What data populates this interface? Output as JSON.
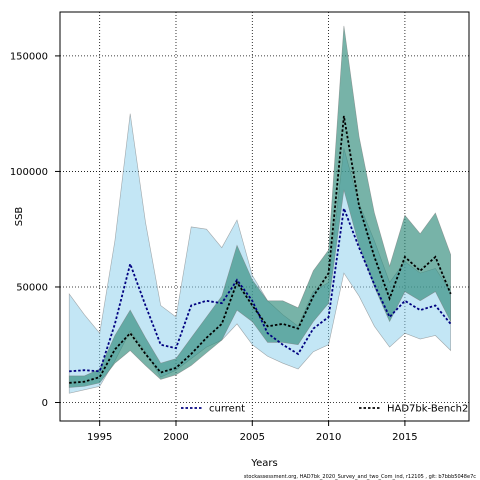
{
  "chart_data": {
    "type": "area",
    "xlabel": "Years",
    "ylabel": "SSB",
    "xlim": [
      1992.4,
      2019.2
    ],
    "ylim": [
      -8000,
      169000
    ],
    "x_ticks": [
      1995,
      2000,
      2005,
      2010,
      2015
    ],
    "y_ticks": [
      0,
      50000,
      100000,
      150000
    ],
    "y_tick_labels": [
      "0",
      "50000",
      "100000",
      "150000"
    ],
    "grid": true,
    "legend_position": "bottom",
    "footnote": "stockassessment.org, HAD7bk_2020_Survey_and_two_Com_ind, r12105 , git: b7bbb5048e7c",
    "series": [
      {
        "name": "current",
        "color": "#000080",
        "band_color": "#87ceeb",
        "x": [
          1993,
          1994,
          1995,
          1996,
          1997,
          1998,
          1999,
          2000,
          2001,
          2002,
          2003,
          2004,
          2005,
          2006,
          2007,
          2008,
          2009,
          2010,
          2011,
          2012,
          2013,
          2014,
          2015,
          2016,
          2017,
          2018
        ],
        "values": [
          13500,
          14000,
          13500,
          34000,
          60000,
          42000,
          25000,
          23500,
          42000,
          44000,
          43000,
          53000,
          44000,
          30000,
          25000,
          21000,
          32000,
          37000,
          84000,
          67000,
          51000,
          37000,
          44000,
          40000,
          42000,
          34000
        ],
        "lower": [
          4000,
          5500,
          7000,
          18000,
          31000,
          22000,
          11000,
          14000,
          19000,
          24000,
          27000,
          34000,
          25000,
          20000,
          17000,
          14500,
          22000,
          25000,
          56000,
          46000,
          33000,
          24000,
          30000,
          27500,
          29000,
          22500
        ],
        "upper": [
          47000,
          38000,
          30000,
          70000,
          125000,
          78000,
          42000,
          37000,
          76000,
          75000,
          67000,
          79000,
          55000,
          44000,
          38000,
          33000,
          48000,
          52000,
          110000,
          86000,
          70000,
          52000,
          61000,
          56000,
          58000,
          48000
        ]
      },
      {
        "name": "HAD7bk-Bench2",
        "color": "#000000",
        "band_color": "#2e8b7a",
        "x": [
          1993,
          1994,
          1995,
          1996,
          1997,
          1998,
          1999,
          2000,
          2001,
          2002,
          2003,
          2004,
          2005,
          2006,
          2007,
          2008,
          2009,
          2010,
          2011,
          2012,
          2013,
          2014,
          2015,
          2016,
          2017,
          2018
        ],
        "values": [
          8500,
          9000,
          11000,
          23000,
          30000,
          21000,
          13000,
          15000,
          21000,
          28000,
          34000,
          52000,
          42000,
          33000,
          34000,
          32000,
          46000,
          56000,
          124000,
          85000,
          63000,
          45000,
          63000,
          57000,
          63000,
          47000
        ],
        "lower": [
          6500,
          7000,
          8500,
          17000,
          22500,
          16000,
          10000,
          12000,
          16000,
          21500,
          27000,
          40000,
          35000,
          26000,
          26000,
          25000,
          35000,
          43000,
          92000,
          68000,
          50000,
          35000,
          48000,
          44000,
          48000,
          35000
        ],
        "upper": [
          11500,
          11500,
          14500,
          29000,
          40000,
          28000,
          17000,
          19000,
          28000,
          37000,
          46000,
          68000,
          53000,
          44000,
          44000,
          41000,
          57000,
          66000,
          163000,
          115000,
          82000,
          59000,
          81000,
          73000,
          82000,
          64000
        ]
      }
    ]
  }
}
